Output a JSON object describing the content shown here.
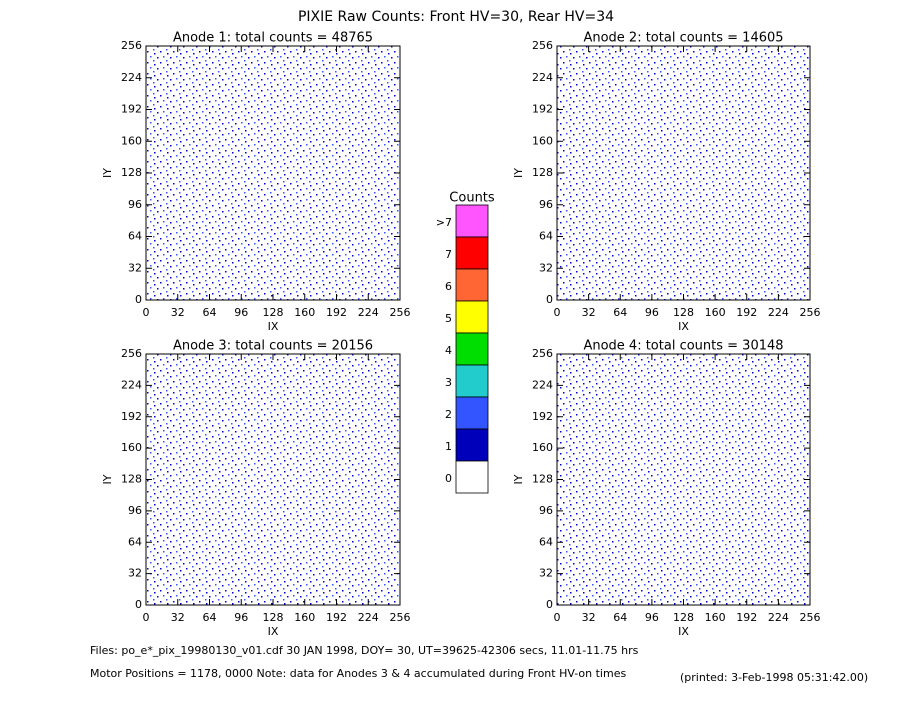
{
  "title": "PIXIE Raw Counts:  Front HV=30, Rear HV=34",
  "chart_data": [
    {
      "type": "heatmap",
      "title": "Anode 1: total counts = 48765",
      "xlabel": "IX",
      "ylabel": "IY",
      "xlim": [
        0,
        256
      ],
      "ylim": [
        0,
        256
      ],
      "xticks": [
        0,
        32,
        64,
        96,
        128,
        160,
        192,
        224,
        256
      ],
      "yticks": [
        0,
        32,
        64,
        96,
        128,
        160,
        192,
        224,
        256
      ]
    },
    {
      "type": "heatmap",
      "title": "Anode 2: total counts = 14605",
      "xlabel": "IX",
      "ylabel": "IY",
      "xlim": [
        0,
        256
      ],
      "ylim": [
        0,
        256
      ],
      "xticks": [
        0,
        32,
        64,
        96,
        128,
        160,
        192,
        224,
        256
      ],
      "yticks": [
        0,
        32,
        64,
        96,
        128,
        160,
        192,
        224,
        256
      ]
    },
    {
      "type": "heatmap",
      "title": "Anode 3: total counts = 20156",
      "xlabel": "IX",
      "ylabel": "IY",
      "xlim": [
        0,
        256
      ],
      "ylim": [
        0,
        256
      ],
      "xticks": [
        0,
        32,
        64,
        96,
        128,
        160,
        192,
        224,
        256
      ],
      "yticks": [
        0,
        32,
        64,
        96,
        128,
        160,
        192,
        224,
        256
      ]
    },
    {
      "type": "heatmap",
      "title": "Anode 4: total counts = 30148",
      "xlabel": "IX",
      "ylabel": "IY",
      "xlim": [
        0,
        256
      ],
      "ylim": [
        0,
        256
      ],
      "xticks": [
        0,
        32,
        64,
        96,
        128,
        160,
        192,
        224,
        256
      ],
      "yticks": [
        0,
        32,
        64,
        96,
        128,
        160,
        192,
        224,
        256
      ]
    }
  ],
  "colorbar": {
    "title": "Counts",
    "labels": [
      ">7",
      "7",
      "6",
      "5",
      "4",
      "3",
      "2",
      "1",
      "0"
    ],
    "colors": [
      "#ff55ff",
      "#ff0000",
      "#ff6633",
      "#ffff00",
      "#00dd00",
      "#22cccc",
      "#3355ff",
      "#0000bb",
      "#ffffff"
    ]
  },
  "footer": {
    "files": "Files: po_e*_pix_19980130_v01.cdf    30 JAN 1998, DOY= 30, UT=39625-42306 secs, 11.01-11.75 hrs",
    "motor": "Motor Positions = 1178, 0000    Note: data for Anodes 3 & 4 accumulated during Front HV-on times",
    "printed": "(printed:  3-Feb-1998 05:31:42.00)"
  }
}
